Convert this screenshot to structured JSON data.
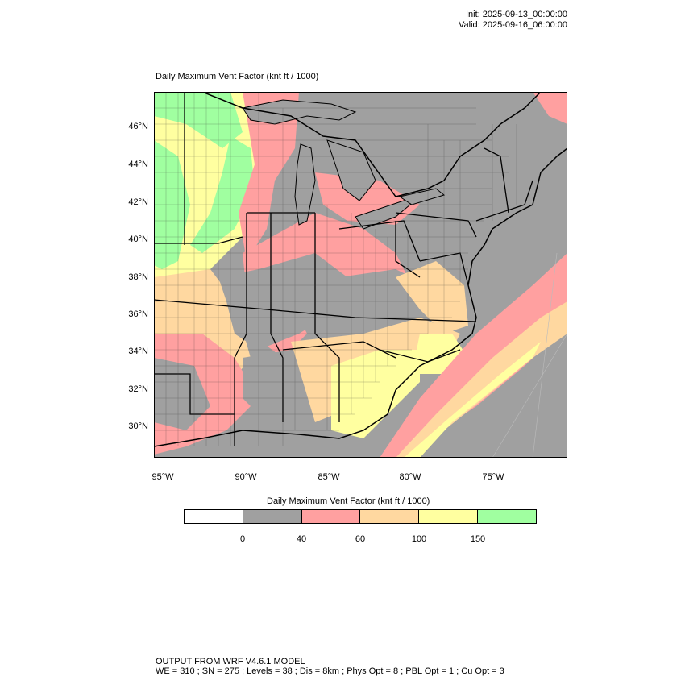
{
  "header": {
    "init": "Init: 2025-09-13_00:00:00",
    "valid": "Valid: 2025-09-16_06:00:00"
  },
  "map": {
    "title": "Daily Maximum Vent Factor   (knt ft / 1000)",
    "lat_labels": [
      "46°N",
      "44°N",
      "42°N",
      "40°N",
      "38°N",
      "36°N",
      "34°N",
      "32°N",
      "30°N"
    ],
    "lon_labels": [
      "95°W",
      "90°W",
      "85°W",
      "80°W",
      "75°W"
    ],
    "colors": {
      "ocean_gray": "#a0a0a0",
      "red": "#ffa0a0",
      "orange": "#ffd8a0",
      "yellow": "#ffff a0",
      "green": "#a0ffa0"
    }
  },
  "colorbar": {
    "title": "Daily Maximum Vent Factor  (knt ft / 1000)",
    "boxes": [
      "#ffffff",
      "#a0a0a0",
      "#ffa0a0",
      "#ffd8a0",
      "#ffffa0",
      "#a0ffa0"
    ],
    "labels": [
      "0",
      "40",
      "60",
      "100",
      "150"
    ]
  },
  "footer": {
    "line1": "OUTPUT FROM WRF V4.6.1 MODEL",
    "line2": "WE = 310 ; SN = 275 ; Levels = 38 ; Dis = 8km ; Phys Opt = 8 ; PBL Opt = 1 ; Cu Opt = 3"
  }
}
